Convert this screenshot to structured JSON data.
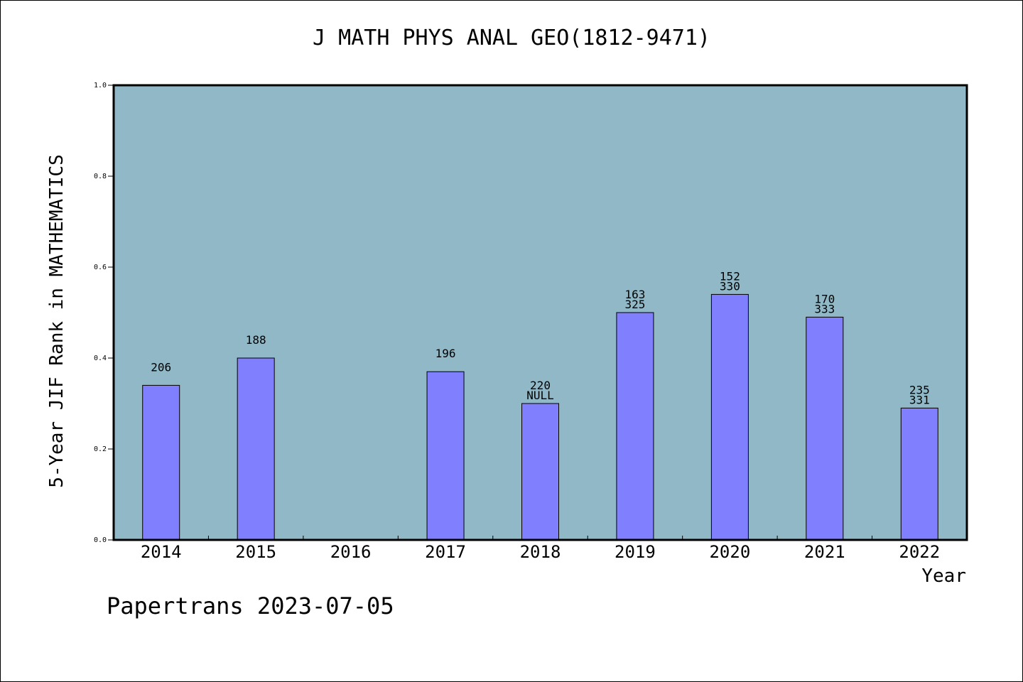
{
  "chart_data": {
    "type": "bar",
    "title": "J MATH PHYS ANAL GEO(1812-9471)",
    "xlabel": "Year",
    "ylabel": "5-Year JIF Rank in MATHEMATICS",
    "ylim": [
      0,
      1.0
    ],
    "yticks": [
      "0.0",
      "0.2",
      "0.4",
      "0.6",
      "0.8",
      "1.0"
    ],
    "grid": false,
    "categories": [
      "2014",
      "2015",
      "2016",
      "2017",
      "2018",
      "2019",
      "2020",
      "2021",
      "2022"
    ],
    "values": [
      0.34,
      0.4,
      null,
      0.37,
      0.3,
      0.5,
      0.54,
      0.49,
      0.29
    ],
    "labels_top": [
      "",
      "",
      "",
      "",
      "220",
      "163",
      "152",
      "170",
      "235"
    ],
    "labels_bottom": [
      "206",
      "188",
      "",
      "196",
      "NULL",
      "325",
      "330",
      "333",
      "331"
    ]
  },
  "footer": "Papertrans 2023-07-05",
  "colors": {
    "plot_background": "#90b8c6",
    "bar_fill": "#8080ff",
    "bar_stroke": "#000000",
    "axis": "#000000"
  }
}
